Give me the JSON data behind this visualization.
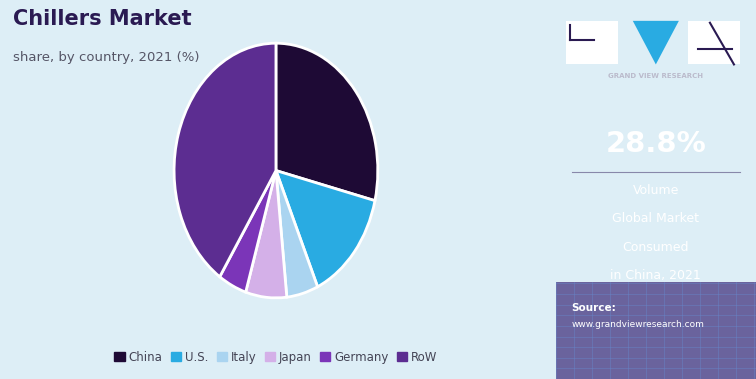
{
  "title": "Chillers Market",
  "subtitle": "share, by country, 2021 (%)",
  "labels": [
    "China",
    "U.S.",
    "Italy",
    "Japan",
    "Germany",
    "RoW"
  ],
  "values": [
    28.8,
    14.5,
    5.0,
    6.5,
    4.5,
    40.7
  ],
  "colors": [
    "#1e0a35",
    "#29abe2",
    "#aad4f0",
    "#d4b0e8",
    "#7b35b8",
    "#5c2d91"
  ],
  "background_color": "#ddeef6",
  "sidebar_bg": "#2a1a52",
  "sidebar_percentage": "28.8%",
  "sidebar_desc": [
    "Volume",
    "Global Market",
    "Consumed",
    "in China, 2021"
  ],
  "source_line1": "Source:",
  "source_line2": "www.grandviewresearch.com",
  "legend_labels": [
    "China",
    "U.S.",
    "Italy",
    "Japan",
    "Germany",
    "RoW"
  ],
  "legend_colors": [
    "#1e0a35",
    "#29abe2",
    "#aad4f0",
    "#d4b0e8",
    "#7b35b8",
    "#5c2d91"
  ],
  "title_color": "#2a1a52",
  "subtitle_color": "#555566",
  "legend_text_color": "#444455"
}
